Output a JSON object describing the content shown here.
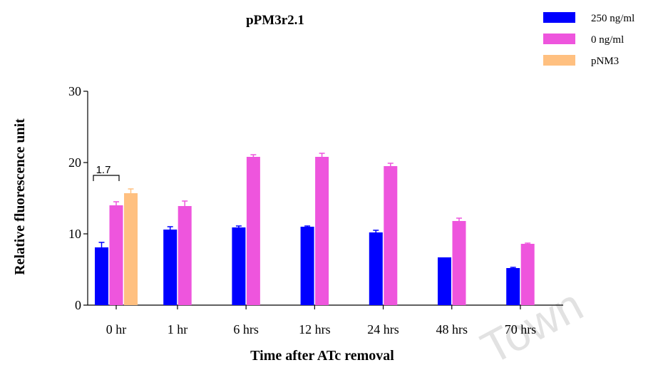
{
  "chart_data": {
    "type": "bar",
    "title": "pPM3r2.1",
    "xlabel": "Time after ATc removal",
    "ylabel": "Relative fluorescence unit",
    "ylim": [
      0,
      30
    ],
    "yticks": [
      "0",
      "10",
      "20",
      "30"
    ],
    "categories": [
      "0 hr",
      "1 hr",
      "6 hrs",
      "12 hrs",
      "24 hrs",
      "48 hrs",
      "70 hrs"
    ],
    "series": [
      {
        "name": "250 ng/ml",
        "color": "#0000ff",
        "values": [
          8.1,
          10.6,
          10.9,
          11.0,
          10.2,
          6.7,
          5.2
        ],
        "errors": [
          0.7,
          0.4,
          0.2,
          0.1,
          0.3,
          0.0,
          0.1
        ]
      },
      {
        "name": "0 ng/ml",
        "color": "#ee55dd",
        "values": [
          14.0,
          13.9,
          20.8,
          20.8,
          19.5,
          11.8,
          8.6
        ],
        "errors": [
          0.5,
          0.7,
          0.3,
          0.5,
          0.4,
          0.4,
          0.1
        ]
      },
      {
        "name": "pNM3",
        "color": "#ffc080",
        "values": [
          15.7,
          null,
          null,
          null,
          null,
          null,
          null
        ],
        "errors": [
          0.6,
          null,
          null,
          null,
          null,
          null,
          null
        ]
      }
    ],
    "annotation": {
      "text": "1.7"
    },
    "legend": "top-right",
    "grid": false,
    "watermark": "Town"
  }
}
